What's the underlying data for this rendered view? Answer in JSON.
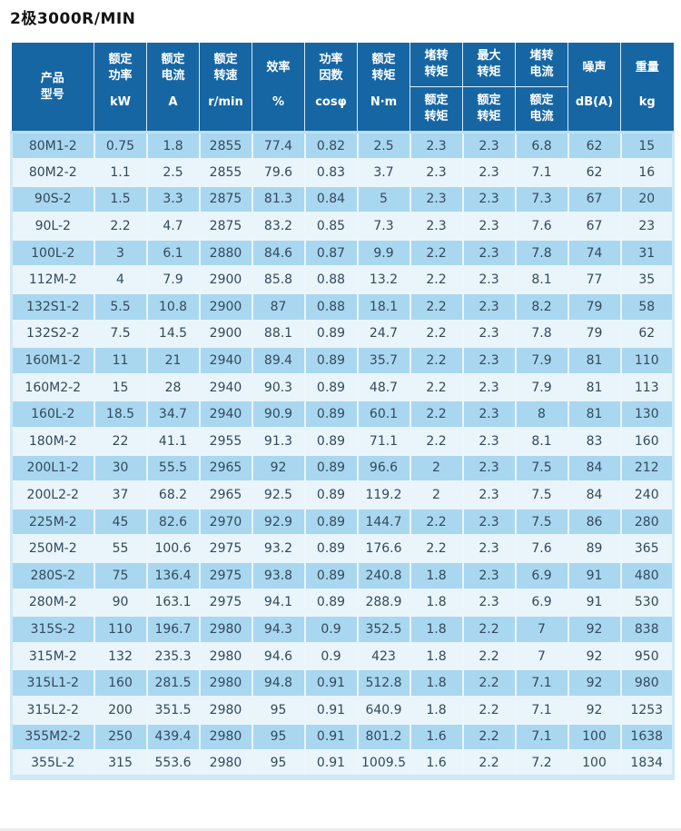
{
  "title": "2极3000R/MIN",
  "colors": {
    "header_bg": "#1766a4",
    "header_text": "#ffffff",
    "row_dark": "#a9d7f0",
    "row_light": "#e9f4fb",
    "grid_line": "#eaf5fc",
    "outer_border": "#cfe9f8",
    "header_divider": "#bfe0f3",
    "text": "#33495b",
    "title_text": "#141414",
    "page_bg": "#ffffff",
    "bottom_strip": "#ececec"
  },
  "header": {
    "cols": [
      {
        "l1": "产品",
        "l2": "型号"
      },
      {
        "l1": "额定",
        "l2": "功率",
        "unit": "kW"
      },
      {
        "l1": "额定",
        "l2": "电流",
        "unit": "A"
      },
      {
        "l1": "额定",
        "l2": "转速",
        "unit": "r/min"
      },
      {
        "l1": "效率",
        "unit": "%"
      },
      {
        "l1": "功率",
        "l2": "因数",
        "unit": "cosφ"
      },
      {
        "l1": "额定",
        "l2": "转矩",
        "unit": "N·m"
      },
      {
        "top1": "堵转",
        "top2": "转矩",
        "bot1": "额定",
        "bot2": "转矩"
      },
      {
        "top1": "最大",
        "top2": "转矩",
        "bot1": "额定",
        "bot2": "转矩"
      },
      {
        "top1": "堵转",
        "top2": "电流",
        "bot1": "额定",
        "bot2": "电流"
      },
      {
        "l1": "噪声",
        "unit": "dB(A)"
      },
      {
        "l1": "重量",
        "unit": "kg"
      }
    ]
  },
  "chart_data": {
    "type": "table",
    "title": "2极3000R/MIN",
    "columns": [
      "产品型号",
      "额定功率 kW",
      "额定电流 A",
      "额定转速 r/min",
      "效率 %",
      "功率因数 cosφ",
      "额定转矩 N·m",
      "堵转转矩/额定转矩",
      "最大转矩/额定转矩",
      "堵转电流/额定电流",
      "噪声 dB(A)",
      "重量 kg"
    ],
    "rows": [
      [
        "80M1-2",
        "0.75",
        "1.8",
        "2855",
        "77.4",
        "0.82",
        "2.5",
        "2.3",
        "2.3",
        "6.8",
        "62",
        "15"
      ],
      [
        "80M2-2",
        "1.1",
        "2.5",
        "2855",
        "79.6",
        "0.83",
        "3.7",
        "2.3",
        "2.3",
        "7.1",
        "62",
        "16"
      ],
      [
        "90S-2",
        "1.5",
        "3.3",
        "2875",
        "81.3",
        "0.84",
        "5",
        "2.3",
        "2.3",
        "7.3",
        "67",
        "20"
      ],
      [
        "90L-2",
        "2.2",
        "4.7",
        "2875",
        "83.2",
        "0.85",
        "7.3",
        "2.3",
        "2.3",
        "7.6",
        "67",
        "23"
      ],
      [
        "100L-2",
        "3",
        "6.1",
        "2880",
        "84.6",
        "0.87",
        "9.9",
        "2.2",
        "2.3",
        "7.8",
        "74",
        "31"
      ],
      [
        "112M-2",
        "4",
        "7.9",
        "2900",
        "85.8",
        "0.88",
        "13.2",
        "2.2",
        "2.3",
        "8.1",
        "77",
        "35"
      ],
      [
        "132S1-2",
        "5.5",
        "10.8",
        "2900",
        "87",
        "0.88",
        "18.1",
        "2.2",
        "2.3",
        "8.2",
        "79",
        "58"
      ],
      [
        "132S2-2",
        "7.5",
        "14.5",
        "2900",
        "88.1",
        "0.89",
        "24.7",
        "2.2",
        "2.3",
        "7.8",
        "79",
        "62"
      ],
      [
        "160M1-2",
        "11",
        "21",
        "2940",
        "89.4",
        "0.89",
        "35.7",
        "2.2",
        "2.3",
        "7.9",
        "81",
        "110"
      ],
      [
        "160M2-2",
        "15",
        "28",
        "2940",
        "90.3",
        "0.89",
        "48.7",
        "2.2",
        "2.3",
        "7.9",
        "81",
        "113"
      ],
      [
        "160L-2",
        "18.5",
        "34.7",
        "2940",
        "90.9",
        "0.89",
        "60.1",
        "2.2",
        "2.3",
        "8",
        "81",
        "130"
      ],
      [
        "180M-2",
        "22",
        "41.1",
        "2955",
        "91.3",
        "0.89",
        "71.1",
        "2.2",
        "2.3",
        "8.1",
        "83",
        "160"
      ],
      [
        "200L1-2",
        "30",
        "55.5",
        "2965",
        "92",
        "0.89",
        "96.6",
        "2",
        "2.3",
        "7.5",
        "84",
        "212"
      ],
      [
        "200L2-2",
        "37",
        "68.2",
        "2965",
        "92.5",
        "0.89",
        "119.2",
        "2",
        "2.3",
        "7.5",
        "84",
        "240"
      ],
      [
        "225M-2",
        "45",
        "82.6",
        "2970",
        "92.9",
        "0.89",
        "144.7",
        "2.2",
        "2.3",
        "7.5",
        "86",
        "280"
      ],
      [
        "250M-2",
        "55",
        "100.6",
        "2975",
        "93.2",
        "0.89",
        "176.6",
        "2.2",
        "2.3",
        "7.6",
        "89",
        "365"
      ],
      [
        "280S-2",
        "75",
        "136.4",
        "2975",
        "93.8",
        "0.89",
        "240.8",
        "1.8",
        "2.3",
        "6.9",
        "91",
        "480"
      ],
      [
        "280M-2",
        "90",
        "163.1",
        "2975",
        "94.1",
        "0.89",
        "288.9",
        "1.8",
        "2.3",
        "6.9",
        "91",
        "530"
      ],
      [
        "315S-2",
        "110",
        "196.7",
        "2980",
        "94.3",
        "0.9",
        "352.5",
        "1.8",
        "2.2",
        "7",
        "92",
        "838"
      ],
      [
        "315M-2",
        "132",
        "235.3",
        "2980",
        "94.6",
        "0.9",
        "423",
        "1.8",
        "2.2",
        "7",
        "92",
        "950"
      ],
      [
        "315L1-2",
        "160",
        "281.5",
        "2980",
        "94.8",
        "0.91",
        "512.8",
        "1.8",
        "2.2",
        "7.1",
        "92",
        "980"
      ],
      [
        "315L2-2",
        "200",
        "351.5",
        "2980",
        "95",
        "0.91",
        "640.9",
        "1.8",
        "2.2",
        "7.1",
        "92",
        "1253"
      ],
      [
        "355M2-2",
        "250",
        "439.4",
        "2980",
        "95",
        "0.91",
        "801.2",
        "1.6",
        "2.2",
        "7.1",
        "100",
        "1638"
      ],
      [
        "355L-2",
        "315",
        "553.6",
        "2980",
        "95",
        "0.91",
        "1009.5",
        "1.6",
        "2.2",
        "7.2",
        "100",
        "1834"
      ]
    ]
  }
}
